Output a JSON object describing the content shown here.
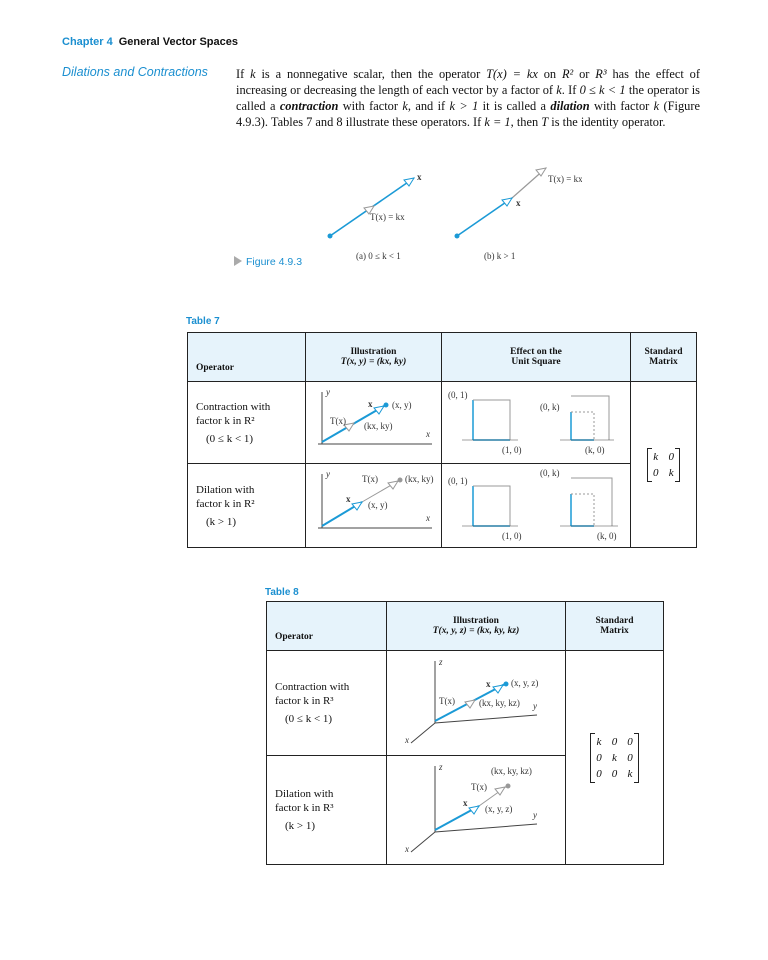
{
  "header": {
    "chapter": "Chapter 4",
    "title": "General Vector Spaces"
  },
  "section_title": "Dilations and Contractions",
  "paragraph": [
    "If ",
    "k",
    " is a nonnegative scalar, then the operator ",
    "T(x) = kx",
    " on ",
    "R²",
    " or ",
    "R³",
    " has the effect of increasing or decreasing the length of each vector by a factor of ",
    "k",
    ". If ",
    "0 ≤ k < 1",
    " the operator is called a ",
    "contraction",
    " with factor ",
    "k",
    ", and if ",
    "k > 1",
    " it is called a ",
    "dilation",
    " with factor ",
    "k",
    " (Figure 4.9.3). Tables 7 and 8 illustrate these operators. If ",
    "k = 1",
    ", then ",
    "T",
    " is the identity operator."
  ],
  "figure": {
    "label": "Figure 4.9.3",
    "a": {
      "x": "x",
      "tx": "T(x) = kx",
      "caption": "(a) 0 ≤ k < 1"
    },
    "b": {
      "x": "x",
      "tx": "T(x) = kx",
      "caption": "(b) k > 1"
    }
  },
  "table_7": {
    "label": "Table 7",
    "header": {
      "operator": "Operator",
      "illustration": [
        "Illustration",
        "T(x, y) = (kx, ky)"
      ],
      "effect": [
        "Effect on the",
        "Unit Square"
      ],
      "matrix": [
        "Standard",
        "Matrix"
      ]
    },
    "rows": [
      {
        "operator": [
          "Contraction with",
          "factor k in R²",
          "(0 ≤ k < 1)"
        ],
        "illustration": {
          "y": "y",
          "xaxis": "x",
          "x": "x",
          "xy": "(x, y)",
          "tx": "T(x)",
          "kxky": "(kx, ky)"
        },
        "effect": {
          "e2": "(0, 1)",
          "e1": "(1, 0)",
          "ke2": "(0, k)",
          "ke1": "(k, 0)"
        }
      },
      {
        "operator": [
          "Dilation with",
          "factor k in R²",
          "(k > 1)"
        ],
        "illustration": {
          "y": "y",
          "xaxis": "x",
          "x": "x",
          "xy": "(x, y)",
          "tx": "T(x)",
          "kxky": "(kx, ky)"
        },
        "effect": {
          "e2": "(0, 1)",
          "e1": "(1, 0)",
          "ke2": "(0, k)",
          "ke1": "(k, 0)"
        }
      }
    ],
    "matrix": [
      "k",
      "0",
      "0",
      "k"
    ]
  },
  "table_8": {
    "label": "Table 8",
    "header": {
      "operator": "Operator",
      "illustration": [
        "Illustration",
        "T(x, y, z) = (kx, ky, kz)"
      ],
      "matrix": [
        "Standard",
        "Matrix"
      ]
    },
    "rows": [
      {
        "operator": [
          "Contraction with",
          "factor k in R³",
          "(0 ≤ k < 1)"
        ],
        "illustration": {
          "z": "z",
          "y": "y",
          "xaxis": "x",
          "x": "x",
          "xyz": "(x, y, z)",
          "tx": "T(x)",
          "kxyz": "(kx, ky, kz)"
        }
      },
      {
        "operator": [
          "Dilation with",
          "factor k in R³",
          "(k > 1)"
        ],
        "illustration": {
          "z": "z",
          "y": "y",
          "xaxis": "x",
          "x": "x",
          "xyz": "(x, y, z)",
          "tx": "T(x)",
          "kxyz": "(kx, ky, kz)"
        }
      }
    ],
    "matrix": [
      "k",
      "0",
      "0",
      "0",
      "k",
      "0",
      "0",
      "0",
      "k"
    ]
  }
}
